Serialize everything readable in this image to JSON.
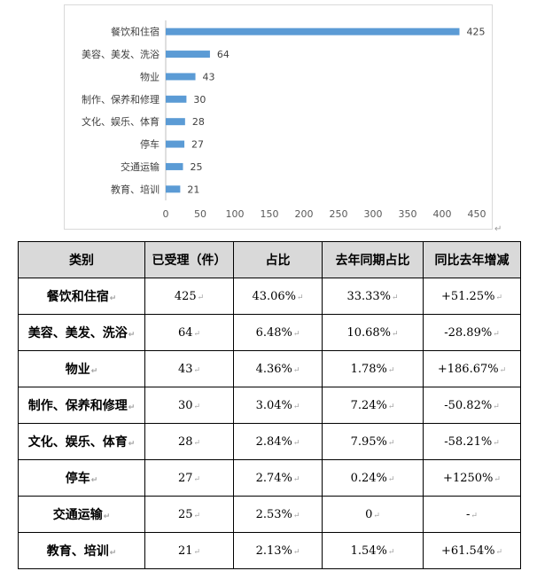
{
  "chart_data": {
    "type": "bar",
    "orientation": "horizontal",
    "categories": [
      "餐饮和住宿",
      "美容、美发、洗浴",
      "物业",
      "制作、保养和修理",
      "文化、娱乐、体育",
      "停车",
      "交通运输",
      "教育、培训"
    ],
    "values": [
      425,
      64,
      43,
      30,
      28,
      27,
      25,
      21
    ],
    "x_ticks": [
      0,
      50,
      100,
      150,
      200,
      250,
      300,
      350,
      400,
      450
    ],
    "xlim": [
      0,
      450
    ],
    "grid": false,
    "bar_color": "#5b9bd5",
    "data_labels": true
  },
  "table": {
    "headers": [
      "类别",
      "已受理（件）",
      "占比",
      "去年同期占比",
      "同比去年增减"
    ],
    "rows": [
      [
        "餐饮和住宿",
        "425",
        "43.06%",
        "33.33%",
        "+51.25%"
      ],
      [
        "美容、美发、洗浴",
        "64",
        "6.48%",
        "10.68%",
        "-28.89%"
      ],
      [
        "物业",
        "43",
        "4.36%",
        "1.78%",
        "+186.67%"
      ],
      [
        "制作、保养和修理",
        "30",
        "3.04%",
        "7.24%",
        "-50.82%"
      ],
      [
        "文化、娱乐、体育",
        "28",
        "2.84%",
        "7.95%",
        "-58.21%"
      ],
      [
        "停车",
        "27",
        "2.74%",
        "0.24%",
        "+1250%"
      ],
      [
        "交通运输",
        "25",
        "2.53%",
        "0",
        "-"
      ],
      [
        "教育、培训",
        "21",
        "2.13%",
        "1.54%",
        "+61.54%"
      ]
    ],
    "header_bg": "#d9d9d9"
  }
}
